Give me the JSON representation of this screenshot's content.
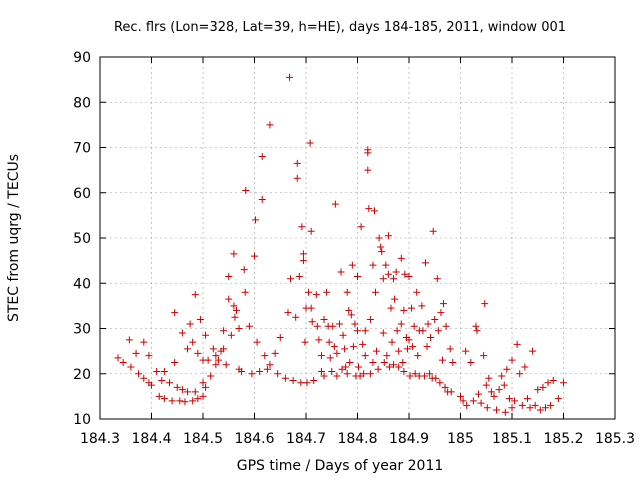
{
  "chart_data": {
    "type": "scatter",
    "title": "Rec. flrs (Lon=328, Lat=39, h=HE), days 184-185, 2011, window 001",
    "xlabel": "GPS time / Days of year 2011",
    "ylabel": "STEC from uqrg / TECUs",
    "xlim": [
      184.3,
      185.3
    ],
    "ylim": [
      10,
      90
    ],
    "xticks": [
      184.3,
      184.4,
      184.5,
      184.6,
      184.7,
      184.8,
      184.9,
      185.0,
      185.1,
      185.2,
      185.3
    ],
    "xtick_labels": [
      "184.3",
      "184.4",
      "184.5",
      "184.6",
      "184.7",
      "184.8",
      "184.9",
      "185",
      "185.1",
      "185.2",
      "185.3"
    ],
    "yticks": [
      10,
      20,
      30,
      40,
      50,
      60,
      70,
      80,
      90
    ],
    "ytick_labels": [
      "10",
      "20",
      "30",
      "40",
      "50",
      "60",
      "70",
      "80",
      "90"
    ],
    "grid": true,
    "marker": "plus",
    "color": "#cc0000",
    "series": [
      {
        "points": [
          [
            184.335,
            23.5
          ],
          [
            184.345,
            22.5
          ],
          [
            184.357,
            27.5
          ],
          [
            184.36,
            21.5
          ],
          [
            184.37,
            24.5
          ],
          [
            184.375,
            20
          ],
          [
            184.385,
            27
          ],
          [
            184.385,
            19
          ],
          [
            184.395,
            24
          ],
          [
            184.395,
            18
          ],
          [
            184.4,
            17.5
          ],
          [
            184.41,
            20.5
          ],
          [
            184.415,
            15
          ],
          [
            184.42,
            18.5
          ],
          [
            184.425,
            20.5
          ],
          [
            184.425,
            14.5
          ],
          [
            184.435,
            18
          ],
          [
            184.44,
            14
          ],
          [
            184.445,
            33.5
          ],
          [
            184.445,
            22.5
          ],
          [
            184.45,
            17
          ],
          [
            184.455,
            14
          ],
          [
            184.46,
            29
          ],
          [
            184.46,
            16.5
          ],
          [
            184.465,
            13.8
          ],
          [
            184.47,
            25.5
          ],
          [
            184.47,
            16
          ],
          [
            184.475,
            31
          ],
          [
            184.48,
            27
          ],
          [
            184.48,
            14
          ],
          [
            184.485,
            37.5
          ],
          [
            184.485,
            16
          ],
          [
            184.49,
            24.5
          ],
          [
            184.49,
            14.5
          ],
          [
            184.495,
            32
          ],
          [
            184.5,
            23
          ],
          [
            184.5,
            18
          ],
          [
            184.5,
            15
          ],
          [
            184.505,
            28.5
          ],
          [
            184.505,
            17
          ],
          [
            184.51,
            23
          ],
          [
            184.515,
            19.5
          ],
          [
            184.52,
            25.5
          ],
          [
            184.525,
            22
          ],
          [
            184.525,
            24
          ],
          [
            184.53,
            23
          ],
          [
            184.535,
            25
          ],
          [
            184.54,
            29.5
          ],
          [
            184.54,
            25.5
          ],
          [
            184.545,
            22
          ],
          [
            184.55,
            41.5
          ],
          [
            184.55,
            36.5
          ],
          [
            184.555,
            28.5
          ],
          [
            184.56,
            46.5
          ],
          [
            184.56,
            35
          ],
          [
            184.562,
            32.5
          ],
          [
            184.565,
            34
          ],
          [
            184.57,
            30
          ],
          [
            184.57,
            21
          ],
          [
            184.575,
            20.5
          ],
          [
            184.58,
            43
          ],
          [
            184.582,
            38
          ],
          [
            184.583,
            60.5
          ],
          [
            184.59,
            30.5
          ],
          [
            184.595,
            20
          ],
          [
            184.6,
            46
          ],
          [
            184.602,
            54
          ],
          [
            184.605,
            27
          ],
          [
            184.61,
            20.5
          ],
          [
            184.615,
            68
          ],
          [
            184.615,
            58.5
          ],
          [
            184.62,
            24
          ],
          [
            184.625,
            21
          ],
          [
            184.63,
            75
          ],
          [
            184.63,
            22
          ],
          [
            184.64,
            24.5
          ],
          [
            184.645,
            20
          ],
          [
            184.65,
            28
          ],
          [
            184.66,
            19
          ],
          [
            184.665,
            33.5
          ],
          [
            184.668,
            85.5
          ],
          [
            184.67,
            41
          ],
          [
            184.675,
            18.5
          ],
          [
            184.68,
            32.5
          ],
          [
            184.683,
            66.5
          ],
          [
            184.683,
            63.2
          ],
          [
            184.687,
            41.5
          ],
          [
            184.69,
            18
          ],
          [
            184.692,
            52.5
          ],
          [
            184.695,
            46.5
          ],
          [
            184.695,
            45
          ],
          [
            184.698,
            27
          ],
          [
            184.7,
            34.5
          ],
          [
            184.702,
            18
          ],
          [
            184.705,
            38
          ],
          [
            184.708,
            71
          ],
          [
            184.71,
            51.5
          ],
          [
            184.71,
            34.5
          ],
          [
            184.712,
            31.5
          ],
          [
            184.715,
            18.5
          ],
          [
            184.72,
            37.5
          ],
          [
            184.722,
            30.5
          ],
          [
            184.725,
            27.5
          ],
          [
            184.73,
            24
          ],
          [
            184.73,
            20.5
          ],
          [
            184.735,
            32
          ],
          [
            184.735,
            19.5
          ],
          [
            184.74,
            38
          ],
          [
            184.743,
            30.5
          ],
          [
            184.745,
            27
          ],
          [
            184.747,
            23.5
          ],
          [
            184.75,
            20.5
          ],
          [
            184.752,
            30.5
          ],
          [
            184.755,
            26
          ],
          [
            184.757,
            57.5
          ],
          [
            184.76,
            24.5
          ],
          [
            184.76,
            19.5
          ],
          [
            184.765,
            31
          ],
          [
            184.768,
            42.5
          ],
          [
            184.77,
            21
          ],
          [
            184.772,
            28.5
          ],
          [
            184.775,
            25.5
          ],
          [
            184.777,
            21.5
          ],
          [
            184.78,
            38
          ],
          [
            184.78,
            20
          ],
          [
            184.783,
            34
          ],
          [
            184.785,
            22.5
          ],
          [
            184.788,
            33
          ],
          [
            184.79,
            44
          ],
          [
            184.792,
            26
          ],
          [
            184.795,
            31
          ],
          [
            184.797,
            19.5
          ],
          [
            184.8,
            41.5
          ],
          [
            184.8,
            29.5
          ],
          [
            184.802,
            21.5
          ],
          [
            184.805,
            19.5
          ],
          [
            184.807,
            52.5
          ],
          [
            184.81,
            26.5
          ],
          [
            184.812,
            20
          ],
          [
            184.815,
            29.5
          ],
          [
            184.815,
            24
          ],
          [
            184.82,
            69.5
          ],
          [
            184.82,
            68.8
          ],
          [
            184.82,
            65
          ],
          [
            184.822,
            56.5
          ],
          [
            184.825,
            32
          ],
          [
            184.825,
            20
          ],
          [
            184.83,
            44
          ],
          [
            184.83,
            22.5
          ],
          [
            184.833,
            56
          ],
          [
            184.835,
            38
          ],
          [
            184.837,
            25
          ],
          [
            184.84,
            21
          ],
          [
            184.842,
            50
          ],
          [
            184.845,
            48
          ],
          [
            184.847,
            47
          ],
          [
            184.85,
            41
          ],
          [
            184.85,
            29
          ],
          [
            184.852,
            22.5
          ],
          [
            184.855,
            44
          ],
          [
            184.857,
            24
          ],
          [
            184.86,
            50.5
          ],
          [
            184.86,
            42
          ],
          [
            184.862,
            21.5
          ],
          [
            184.865,
            34.5
          ],
          [
            184.867,
            27
          ],
          [
            184.87,
            41
          ],
          [
            184.87,
            22
          ],
          [
            184.872,
            36.5
          ],
          [
            184.875,
            42.5
          ],
          [
            184.877,
            29.5
          ],
          [
            184.88,
            25
          ],
          [
            184.88,
            21.5
          ],
          [
            184.885,
            45.5
          ],
          [
            184.885,
            31
          ],
          [
            184.888,
            22.5
          ],
          [
            184.89,
            34
          ],
          [
            184.89,
            20.5
          ],
          [
            184.892,
            42
          ],
          [
            184.895,
            28
          ],
          [
            184.897,
            25.5
          ],
          [
            184.9,
            41.5
          ],
          [
            184.9,
            27.5
          ],
          [
            184.902,
            19.5
          ],
          [
            184.905,
            34.5
          ],
          [
            184.907,
            26
          ],
          [
            184.91,
            30.5
          ],
          [
            184.912,
            20
          ],
          [
            184.915,
            38
          ],
          [
            184.917,
            24
          ],
          [
            184.92,
            29.5
          ],
          [
            184.92,
            19.5
          ],
          [
            184.925,
            35
          ],
          [
            184.927,
            29.5
          ],
          [
            184.93,
            19.5
          ],
          [
            184.932,
            44.5
          ],
          [
            184.935,
            26
          ],
          [
            184.937,
            31
          ],
          [
            184.94,
            20
          ],
          [
            184.942,
            28
          ],
          [
            184.945,
            19
          ],
          [
            184.947,
            51.5
          ],
          [
            184.95,
            32
          ],
          [
            184.952,
            19
          ],
          [
            184.955,
            41
          ],
          [
            184.957,
            29.5
          ],
          [
            184.96,
            18
          ],
          [
            184.962,
            33.5
          ],
          [
            184.965,
            23
          ],
          [
            184.967,
            35.5
          ],
          [
            184.97,
            17
          ],
          [
            184.972,
            30.5
          ],
          [
            184.975,
            16
          ],
          [
            184.98,
            25.5
          ],
          [
            184.982,
            16
          ],
          [
            184.985,
            22.5
          ],
          [
            185.0,
            15
          ],
          [
            185.005,
            14
          ],
          [
            185.01,
            25
          ],
          [
            185.012,
            13
          ],
          [
            185.02,
            22.5
          ],
          [
            185.025,
            14
          ],
          [
            185.03,
            30.5
          ],
          [
            185.032,
            29.5
          ],
          [
            185.035,
            15.5
          ],
          [
            185.04,
            13.5
          ],
          [
            185.045,
            24
          ],
          [
            185.047,
            35.5
          ],
          [
            185.05,
            17.5
          ],
          [
            185.052,
            12.5
          ],
          [
            185.055,
            19
          ],
          [
            185.06,
            16
          ],
          [
            185.065,
            15
          ],
          [
            185.07,
            12
          ],
          [
            185.075,
            16.5
          ],
          [
            185.08,
            19.5
          ],
          [
            185.085,
            17.5
          ],
          [
            185.087,
            11.5
          ],
          [
            185.09,
            21
          ],
          [
            185.095,
            14.5
          ],
          [
            185.1,
            23
          ],
          [
            185.1,
            12.5
          ],
          [
            185.105,
            14
          ],
          [
            185.11,
            26.5
          ],
          [
            185.115,
            20
          ],
          [
            185.12,
            13
          ],
          [
            185.125,
            21.5
          ],
          [
            185.13,
            14.5
          ],
          [
            185.135,
            12.5
          ],
          [
            185.14,
            25
          ],
          [
            185.145,
            13
          ],
          [
            185.15,
            16.5
          ],
          [
            185.155,
            12
          ],
          [
            185.16,
            17
          ],
          [
            185.165,
            12.5
          ],
          [
            185.17,
            18
          ],
          [
            185.175,
            13
          ],
          [
            185.18,
            18.5
          ],
          [
            185.19,
            14.5
          ],
          [
            185.2,
            18
          ]
        ]
      }
    ]
  }
}
